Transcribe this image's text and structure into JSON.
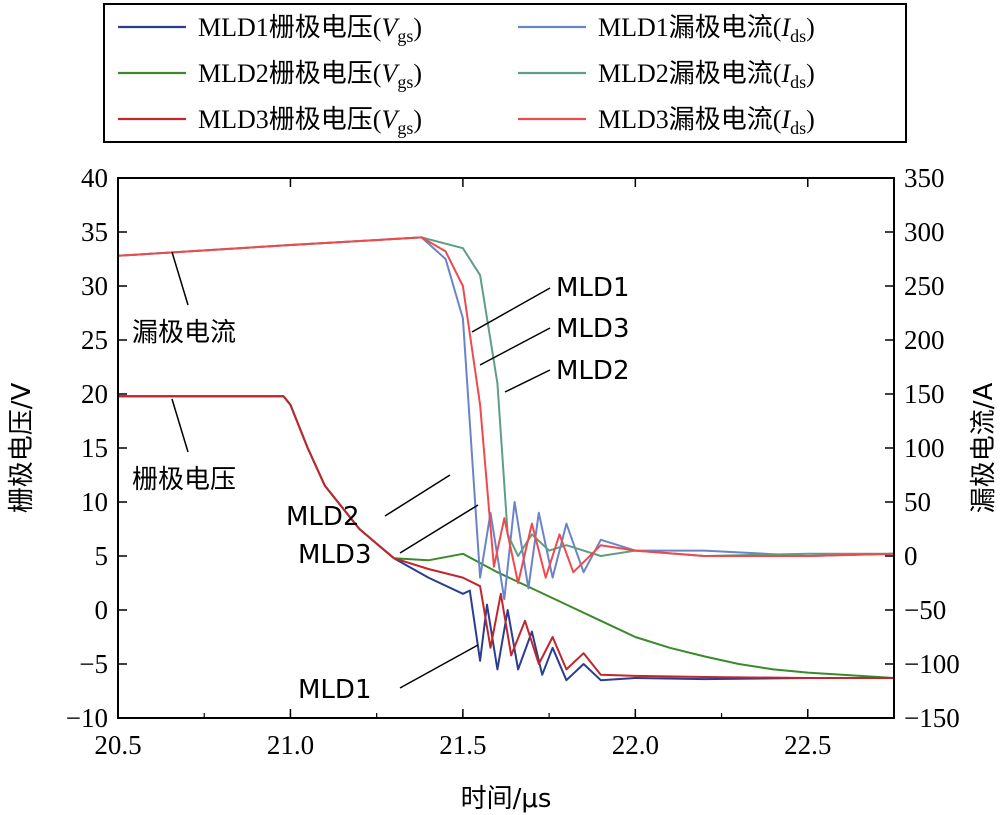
{
  "chart_data": {
    "type": "line",
    "xlabel": "时间/μs",
    "ylabel_left": "栅极电压/V",
    "ylabel_right": "漏极电流/A",
    "x_range": [
      20.5,
      22.75
    ],
    "y_left_range": [
      -10,
      40
    ],
    "y_right_range": [
      -150,
      350
    ],
    "x_ticks": [
      "20.5",
      "21.0",
      "21.5",
      "22.0",
      "22.5"
    ],
    "x_tick_values": [
      20.5,
      21.0,
      21.5,
      22.0,
      22.5
    ],
    "y_left_ticks": [
      "40",
      "35",
      "30",
      "25",
      "20",
      "15",
      "10",
      "5",
      "0",
      "−5",
      "−10"
    ],
    "y_left_tick_values": [
      40,
      35,
      30,
      25,
      20,
      15,
      10,
      5,
      0,
      -5,
      -10
    ],
    "y_right_ticks": [
      "350",
      "300",
      "250",
      "200",
      "150",
      "100",
      "50",
      "0",
      "−50",
      "−100",
      "−150"
    ],
    "y_right_tick_values": [
      350,
      300,
      250,
      200,
      150,
      100,
      50,
      0,
      -50,
      -100,
      -150
    ],
    "legend": [
      {
        "prefix": "MLD1栅极电压(",
        "sym": "V",
        "sub": "gs",
        "suffix": ")",
        "color": "#2a3d91"
      },
      {
        "prefix": "MLD2栅极电压(",
        "sym": "V",
        "sub": "gs",
        "suffix": ")",
        "color": "#3a8a2a"
      },
      {
        "prefix": "MLD3栅极电压(",
        "sym": "V",
        "sub": "gs",
        "suffix": ")",
        "color": "#c0262c"
      },
      {
        "prefix": "MLD1漏极电流(",
        "sym": "I",
        "sub": "ds",
        "suffix": ")",
        "color": "#6a84c8"
      },
      {
        "prefix": "MLD2漏极电流(",
        "sym": "I",
        "sub": "ds",
        "suffix": ")",
        "color": "#5f9e84"
      },
      {
        "prefix": "MLD3漏极电流(",
        "sym": "I",
        "sub": "ds",
        "suffix": ")",
        "color": "#ee4a4e"
      }
    ],
    "series": [
      {
        "name": "MLD1栅极电压",
        "axis": "left",
        "color": "#2a3d91",
        "x": [
          20.5,
          20.98,
          21.0,
          21.05,
          21.1,
          21.2,
          21.3,
          21.4,
          21.5,
          21.52,
          21.55,
          21.57,
          21.6,
          21.63,
          21.66,
          21.7,
          21.73,
          21.76,
          21.8,
          21.85,
          21.9,
          22.0,
          22.2,
          22.5,
          22.75
        ],
        "y": [
          19.8,
          19.8,
          19.0,
          15.0,
          11.5,
          7.5,
          4.8,
          3.0,
          1.5,
          1.8,
          -4.7,
          0.5,
          -5.5,
          0.0,
          -5.5,
          -2.0,
          -6.0,
          -3.5,
          -6.5,
          -5.0,
          -6.5,
          -6.3,
          -6.4,
          -6.3,
          -6.3
        ]
      },
      {
        "name": "MLD2栅极电压",
        "axis": "left",
        "color": "#3a8a2a",
        "x": [
          20.5,
          20.98,
          21.0,
          21.05,
          21.1,
          21.2,
          21.3,
          21.4,
          21.5,
          21.6,
          21.7,
          21.8,
          21.9,
          22.0,
          22.1,
          22.2,
          22.3,
          22.4,
          22.5,
          22.6,
          22.75
        ],
        "y": [
          19.8,
          19.8,
          19.0,
          15.0,
          11.5,
          7.5,
          4.8,
          4.6,
          5.2,
          3.5,
          2.0,
          0.5,
          -1.0,
          -2.5,
          -3.5,
          -4.3,
          -5.0,
          -5.5,
          -5.8,
          -6.0,
          -6.3
        ]
      },
      {
        "name": "MLD3栅极电压",
        "axis": "left",
        "color": "#c0262c",
        "x": [
          20.5,
          20.98,
          21.0,
          21.05,
          21.1,
          21.2,
          21.3,
          21.4,
          21.5,
          21.55,
          21.58,
          21.61,
          21.64,
          21.68,
          21.72,
          21.76,
          21.8,
          21.85,
          21.9,
          22.0,
          22.2,
          22.5,
          22.75
        ],
        "y": [
          19.8,
          19.8,
          19.0,
          15.0,
          11.5,
          7.5,
          4.8,
          3.8,
          3.0,
          2.2,
          -3.5,
          1.5,
          -4.2,
          -1.0,
          -5.0,
          -2.5,
          -5.5,
          -4.0,
          -6.0,
          -6.1,
          -6.2,
          -6.3,
          -6.3
        ]
      },
      {
        "name": "MLD1漏极电流",
        "axis": "right",
        "color": "#6a84c8",
        "x": [
          20.5,
          21.0,
          21.38,
          21.45,
          21.5,
          21.55,
          21.58,
          21.62,
          21.65,
          21.69,
          21.72,
          21.76,
          21.8,
          21.85,
          21.9,
          22.0,
          22.2,
          22.5,
          22.75
        ],
        "y": [
          278,
          288,
          295,
          275,
          220,
          -20,
          40,
          -40,
          50,
          -30,
          40,
          -20,
          30,
          -15,
          15,
          5,
          5,
          0,
          2
        ]
      },
      {
        "name": "MLD2漏极电流",
        "axis": "right",
        "color": "#5f9e84",
        "x": [
          20.5,
          21.0,
          21.38,
          21.5,
          21.55,
          21.6,
          21.63,
          21.66,
          21.7,
          21.75,
          21.8,
          21.9,
          22.0,
          22.2,
          22.5,
          22.75
        ],
        "y": [
          278,
          288,
          295,
          285,
          260,
          160,
          20,
          0,
          20,
          5,
          10,
          0,
          5,
          0,
          2,
          2
        ]
      },
      {
        "name": "MLD3漏极电流",
        "axis": "right",
        "color": "#ee4a4e",
        "x": [
          20.5,
          21.0,
          21.38,
          21.45,
          21.5,
          21.55,
          21.59,
          21.62,
          21.66,
          21.7,
          21.74,
          21.78,
          21.82,
          21.9,
          22.0,
          22.2,
          22.5,
          22.75
        ],
        "y": [
          278,
          288,
          295,
          282,
          250,
          140,
          -10,
          35,
          -25,
          30,
          -20,
          20,
          -15,
          10,
          5,
          0,
          0,
          2
        ]
      }
    ],
    "annotations": [
      {
        "text": "漏极电流"
      },
      {
        "text": "栅极电压"
      },
      {
        "text": "MLD1"
      },
      {
        "text": "MLD3"
      },
      {
        "text": "MLD2"
      },
      {
        "text": "MLD2"
      },
      {
        "text": "MLD3"
      },
      {
        "text": "MLD1"
      }
    ]
  }
}
